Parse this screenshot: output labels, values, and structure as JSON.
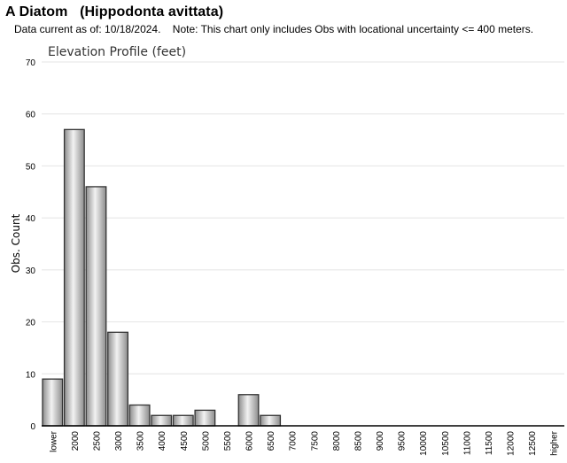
{
  "header": {
    "title": "A Diatom   (Hippodonta avittata)",
    "note": "Data current as of: 10/18/2024.    Note: This chart only includes Obs with locational uncertainty <= 400 meters."
  },
  "colors": {
    "bar_light": "#f2f2f2",
    "bar_dark": "#8c8c8c",
    "bar_stroke": "#333333",
    "grid": "#e4e4e4",
    "axis": "#000000"
  },
  "chart_data": {
    "type": "bar",
    "title": "Elevation Profile (feet)",
    "xlabel": "",
    "ylabel": "Obs. Count",
    "ylim": [
      0,
      70
    ],
    "yticks": [
      0,
      10,
      20,
      30,
      40,
      50,
      60,
      70
    ],
    "grid": true,
    "categories": [
      "lower",
      "2000",
      "2500",
      "3000",
      "3500",
      "4000",
      "4500",
      "5000",
      "5500",
      "6000",
      "6500",
      "7000",
      "7500",
      "8000",
      "8500",
      "9000",
      "9500",
      "10000",
      "10500",
      "11000",
      "11500",
      "12000",
      "12500",
      "higher"
    ],
    "values": [
      9,
      57,
      46,
      18,
      4,
      2,
      2,
      3,
      0,
      6,
      2,
      0,
      0,
      0,
      0,
      0,
      0,
      0,
      0,
      0,
      0,
      0,
      0,
      0
    ]
  }
}
